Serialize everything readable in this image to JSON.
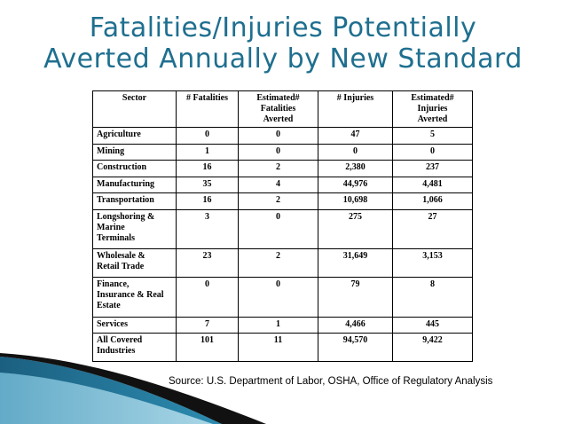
{
  "slide": {
    "title_line1": "Fatalities/Injuries Potentially",
    "title_line2": "Averted Annually by New Standard",
    "source": "Source: U.S. Department of Labor, OSHA, Office of Regulatory Analysis",
    "accent_color": "#1f6f8f"
  },
  "table": {
    "headers": [
      [
        "Sector"
      ],
      [
        "# Fatalities"
      ],
      [
        "Estimated#",
        "Fatalities",
        "Averted"
      ],
      [
        "# Injuries"
      ],
      [
        "Estimated#",
        "Injuries",
        "Averted"
      ]
    ],
    "rows": [
      {
        "sector": [
          "Agriculture"
        ],
        "fatalities": "0",
        "fat_averted": "0",
        "injuries": "47",
        "inj_averted": "5"
      },
      {
        "sector": [
          "Mining"
        ],
        "fatalities": "1",
        "fat_averted": "0",
        "injuries": "0",
        "inj_averted": "0"
      },
      {
        "sector": [
          "Construction"
        ],
        "fatalities": "16",
        "fat_averted": "2",
        "injuries": "2,380",
        "inj_averted": "237"
      },
      {
        "sector": [
          "Manufacturing"
        ],
        "fatalities": "35",
        "fat_averted": "4",
        "injuries": "44,976",
        "inj_averted": "4,481"
      },
      {
        "sector": [
          "Transportation"
        ],
        "fatalities": "16",
        "fat_averted": "2",
        "injuries": "10,698",
        "inj_averted": "1,066"
      },
      {
        "sector": [
          "Longshoring &",
          "Marine",
          "Terminals"
        ],
        "fatalities": "3",
        "fat_averted": "0",
        "injuries": "275",
        "inj_averted": "27"
      },
      {
        "sector": [
          "Wholesale &",
          "Retail Trade"
        ],
        "fatalities": "23",
        "fat_averted": "2",
        "injuries": "31,649",
        "inj_averted": "3,153"
      },
      {
        "sector": [
          "Finance,",
          "Insurance & Real",
          "Estate"
        ],
        "fatalities": "0",
        "fat_averted": "0",
        "injuries": "79",
        "inj_averted": "8"
      },
      {
        "sector": [
          "Services"
        ],
        "fatalities": "7",
        "fat_averted": "1",
        "injuries": "4,466",
        "inj_averted": "445"
      },
      {
        "sector": [
          "All Covered",
          "Industries"
        ],
        "fatalities": "101",
        "fat_averted": "11",
        "injuries": "94,570",
        "inj_averted": "9,422"
      }
    ]
  }
}
